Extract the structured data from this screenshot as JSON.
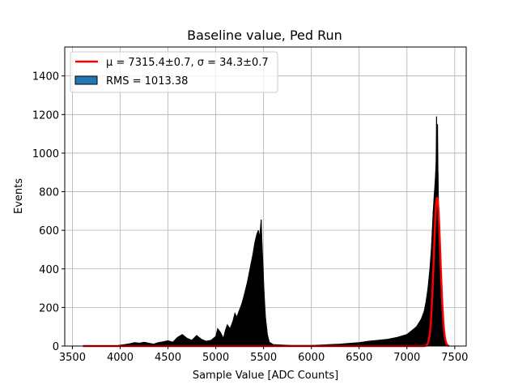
{
  "chart_data": {
    "type": "bar",
    "title": "Baseline value, Ped Run",
    "xlabel": "Sample Value [ADC Counts]",
    "ylabel": "Events",
    "xlim": [
      3420,
      7620
    ],
    "ylim": [
      0,
      1550
    ],
    "xticks": [
      3500,
      4000,
      4500,
      5000,
      5500,
      6000,
      6500,
      7000,
      7500
    ],
    "yticks": [
      0,
      200,
      400,
      600,
      800,
      1000,
      1200,
      1400
    ],
    "grid": true,
    "legend_position": "top-left",
    "histogram": {
      "name": "RMS = 1013.38",
      "color": "#1f77b4",
      "edge_color": "#000000",
      "points": [
        [
          3950,
          0
        ],
        [
          4000,
          5
        ],
        [
          4050,
          8
        ],
        [
          4100,
          12
        ],
        [
          4150,
          18
        ],
        [
          4200,
          15
        ],
        [
          4250,
          20
        ],
        [
          4300,
          15
        ],
        [
          4350,
          10
        ],
        [
          4400,
          18
        ],
        [
          4450,
          22
        ],
        [
          4500,
          28
        ],
        [
          4550,
          20
        ],
        [
          4600,
          45
        ],
        [
          4650,
          60
        ],
        [
          4700,
          40
        ],
        [
          4750,
          30
        ],
        [
          4800,
          55
        ],
        [
          4850,
          35
        ],
        [
          4900,
          25
        ],
        [
          4950,
          30
        ],
        [
          5000,
          50
        ],
        [
          5020,
          90
        ],
        [
          5050,
          70
        ],
        [
          5080,
          40
        ],
        [
          5100,
          80
        ],
        [
          5120,
          110
        ],
        [
          5150,
          90
        ],
        [
          5180,
          130
        ],
        [
          5200,
          170
        ],
        [
          5220,
          150
        ],
        [
          5250,
          190
        ],
        [
          5270,
          215
        ],
        [
          5290,
          250
        ],
        [
          5310,
          290
        ],
        [
          5330,
          330
        ],
        [
          5350,
          380
        ],
        [
          5370,
          430
        ],
        [
          5390,
          480
        ],
        [
          5410,
          540
        ],
        [
          5430,
          580
        ],
        [
          5445,
          600
        ],
        [
          5455,
          560
        ],
        [
          5465,
          600
        ],
        [
          5475,
          655
        ],
        [
          5485,
          520
        ],
        [
          5495,
          400
        ],
        [
          5505,
          280
        ],
        [
          5520,
          150
        ],
        [
          5540,
          60
        ],
        [
          5560,
          20
        ],
        [
          5600,
          8
        ],
        [
          5700,
          5
        ],
        [
          5800,
          3
        ],
        [
          5900,
          3
        ],
        [
          6000,
          3
        ],
        [
          6100,
          5
        ],
        [
          6200,
          8
        ],
        [
          6300,
          10
        ],
        [
          6400,
          14
        ],
        [
          6500,
          18
        ],
        [
          6600,
          25
        ],
        [
          6700,
          30
        ],
        [
          6800,
          35
        ],
        [
          6900,
          45
        ],
        [
          7000,
          60
        ],
        [
          7050,
          80
        ],
        [
          7100,
          100
        ],
        [
          7150,
          140
        ],
        [
          7180,
          180
        ],
        [
          7200,
          230
        ],
        [
          7220,
          300
        ],
        [
          7240,
          400
        ],
        [
          7255,
          500
        ],
        [
          7265,
          600
        ],
        [
          7275,
          700
        ],
        [
          7285,
          780
        ],
        [
          7295,
          850
        ],
        [
          7305,
          950
        ],
        [
          7310,
          1190
        ],
        [
          7315,
          1000
        ],
        [
          7320,
          1150
        ],
        [
          7325,
          900
        ],
        [
          7335,
          600
        ],
        [
          7345,
          400
        ],
        [
          7355,
          250
        ],
        [
          7365,
          150
        ],
        [
          7380,
          60
        ],
        [
          7400,
          20
        ],
        [
          7420,
          5
        ],
        [
          7440,
          0
        ]
      ]
    },
    "series": [
      {
        "name": "μ = 7315.4±0.7, σ = 34.3±0.7",
        "color": "#ff0000",
        "kind": "gaussian",
        "mu": 7315.4,
        "sigma": 34.3,
        "amplitude": 770,
        "x_range": [
          3610,
          7440
        ]
      }
    ]
  }
}
